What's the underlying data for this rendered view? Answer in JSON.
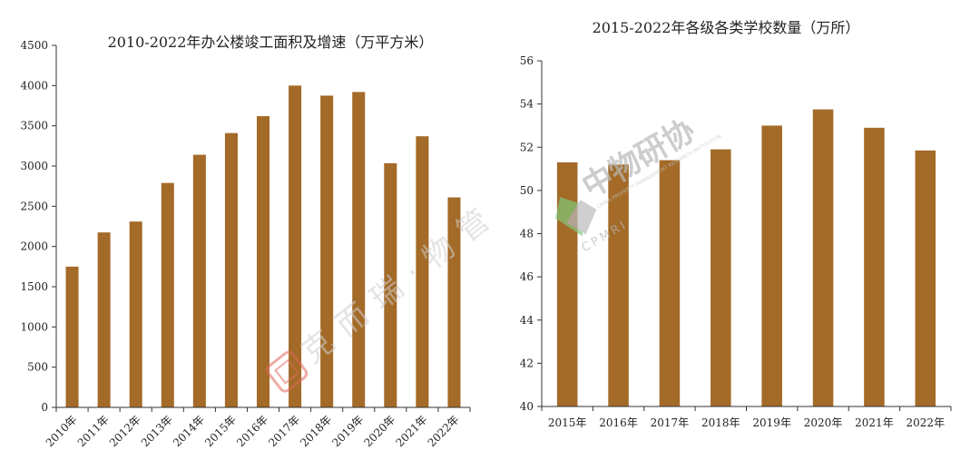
{
  "colors": {
    "bar": "#a36a28",
    "axis": "#333333",
    "text": "#222222",
    "watermark_green": "#7fc97a",
    "watermark_red": "#e06a5a"
  },
  "watermarks": {
    "left": {
      "text": "克而瑞·物管",
      "icon": "seal-logo"
    },
    "right": {
      "text": "中物研协",
      "subtext": "CHINA PROPERTY MANAGEMENT RESEARCH INSTITUTION",
      "abbr": "CPMRI",
      "icon": "cpmri-logo"
    }
  },
  "chart_data": [
    {
      "type": "bar",
      "title": "2010-2022年办公楼竣工面积及增速（万平方米）",
      "categories": [
        "2010年",
        "2011年",
        "2012年",
        "2013年",
        "2014年",
        "2015年",
        "2016年",
        "2017年",
        "2018年",
        "2019年",
        "2020年",
        "2021年",
        "2022年"
      ],
      "values": [
        1750,
        2175,
        2310,
        2790,
        3140,
        3410,
        3620,
        4000,
        3875,
        3920,
        3035,
        3370,
        2610
      ],
      "ylim": [
        0,
        4500
      ],
      "yticks": [
        "0",
        "500",
        "1000",
        "1500",
        "2000",
        "2500",
        "3000",
        "3500",
        "4000",
        "4500"
      ],
      "xlabel": "",
      "ylabel": "",
      "grid": false,
      "x_tick_rotation": "rotated"
    },
    {
      "type": "bar",
      "title": "2015-2022年各级各类学校数量（万所）",
      "categories": [
        "2015年",
        "2016年",
        "2017年",
        "2018年",
        "2019年",
        "2020年",
        "2021年",
        "2022年"
      ],
      "values": [
        51.3,
        51.2,
        51.4,
        51.9,
        53.0,
        53.75,
        52.9,
        51.85
      ],
      "ylim": [
        40,
        56
      ],
      "yticks": [
        "40",
        "42",
        "44",
        "46",
        "48",
        "50",
        "52",
        "54",
        "56"
      ],
      "xlabel": "",
      "ylabel": "",
      "grid": false,
      "x_tick_rotation": "horizontal"
    }
  ]
}
